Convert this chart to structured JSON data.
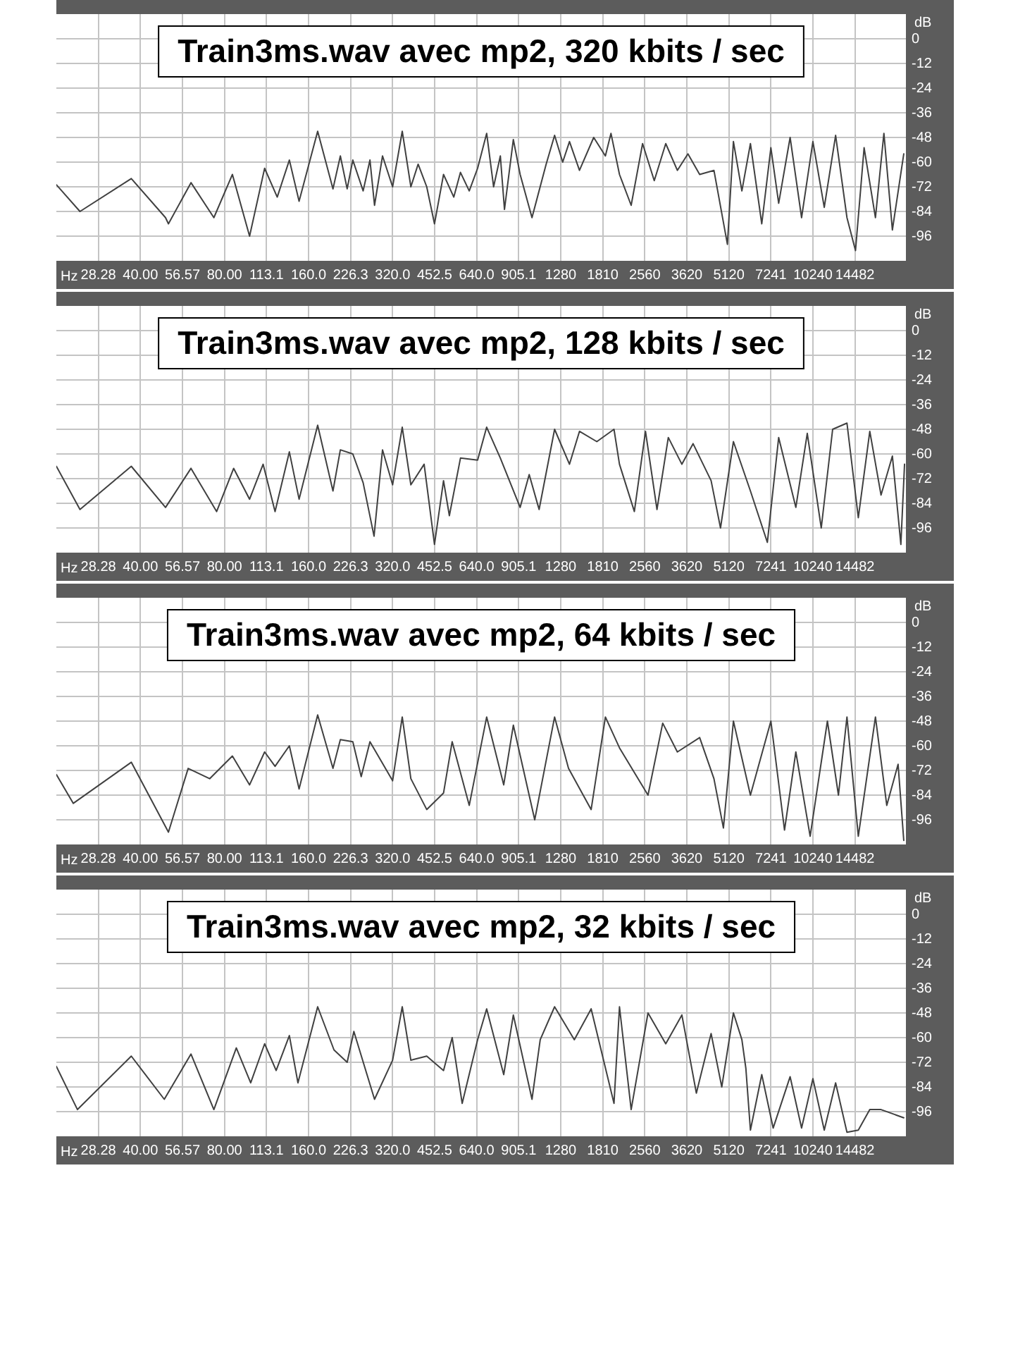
{
  "chart_data": [
    {
      "type": "line",
      "title": "Train3ms.wav avec mp2, 320 kbits / sec",
      "xlabel": "Hz",
      "ylabel": "dB",
      "color": "#404040",
      "log": "x",
      "grid": true,
      "xlim": [
        20,
        22050
      ],
      "ylim": [
        -108,
        12
      ],
      "xticks": [
        28.28,
        {
          "value": 40,
          "label": "40.00"
        },
        56.57,
        {
          "value": 80,
          "label": "80.00"
        },
        113.1,
        {
          "value": 160,
          "label": "160.0"
        },
        226.3,
        {
          "value": 320,
          "label": "320.0"
        },
        452.5,
        {
          "value": 640,
          "label": "640.0"
        },
        905.1,
        1280,
        1810,
        2560,
        3620,
        5120,
        7241,
        10240,
        14482
      ],
      "yticks": [
        0,
        -12,
        -24,
        -36,
        -48,
        -60,
        -72,
        -84,
        -96
      ],
      "x": [
        20,
        24.3,
        37.1,
        49.2,
        50.4,
        60.7,
        73.3,
        85.4,
        98.4,
        111.4,
        123.6,
        136.6,
        148,
        172.5,
        195.7,
        208,
        220,
        230.5,
        251,
        265.5,
        275.7,
        294.5,
        320,
        346.5,
        372,
        395,
        424,
        452,
        487,
        530,
        560,
        602,
        645,
        695,
        736,
        778,
        805,
        866,
        916,
        1010,
        1135,
        1217,
        1301,
        1376,
        1494,
        1680,
        1850,
        1937,
        2078,
        2288,
        2514,
        2768,
        3043,
        3349,
        3654,
        4025,
        4528,
        5060,
        5317,
        5701,
        6117,
        6717,
        7241,
        7722,
        8486,
        9327,
        10240,
        11245,
        12350,
        13560,
        14550,
        15620,
        17150,
        18390,
        19720,
        21660
      ],
      "values": [
        -71,
        -84,
        -68,
        -87,
        -90,
        -70,
        -87,
        -66,
        -96,
        -63,
        -77,
        -59,
        -79,
        -45,
        -73,
        -57,
        -73,
        -59,
        -74,
        -59,
        -81,
        -57,
        -72,
        -45,
        -72,
        -61,
        -72,
        -90,
        -66,
        -77,
        -65,
        -74,
        -63,
        -46,
        -72,
        -57,
        -83,
        -49,
        -66,
        -87,
        -61,
        -47,
        -60,
        -50,
        -64,
        -48,
        -57,
        -46,
        -66,
        -81,
        -51,
        -69,
        -51,
        -64,
        -56,
        -66,
        -64,
        -100,
        -50,
        -74,
        -51,
        -90,
        -53,
        -80,
        -48,
        -87,
        -50,
        -82,
        -47,
        -87,
        -103,
        -53,
        -87,
        -46,
        -93,
        -56
      ]
    },
    {
      "type": "line",
      "title": "Train3ms.wav avec mp2, 128 kbits / sec",
      "xlabel": "Hz",
      "ylabel": "dB",
      "color": "#404040",
      "log": "x",
      "grid": true,
      "xlim": [
        20,
        22050
      ],
      "ylim": [
        -108,
        12
      ],
      "xticks": [
        28.28,
        {
          "value": 40,
          "label": "40.00"
        },
        56.57,
        {
          "value": 80,
          "label": "80.00"
        },
        113.1,
        {
          "value": 160,
          "label": "160.0"
        },
        226.3,
        {
          "value": 320,
          "label": "320.0"
        },
        452.5,
        {
          "value": 640,
          "label": "640.0"
        },
        905.1,
        1280,
        1810,
        2560,
        3620,
        5120,
        7241,
        10240,
        14482
      ],
      "yticks": [
        0,
        -12,
        -24,
        -36,
        -48,
        -60,
        -72,
        -84,
        -96
      ],
      "x": [
        20,
        24.3,
        37.1,
        49.2,
        60.7,
        75,
        86.3,
        98.4,
        110,
        121.4,
        136.6,
        148,
        172.5,
        195.7,
        208,
        230.5,
        251,
        274.6,
        294.5,
        320,
        346.5,
        372,
        415,
        452,
        487,
        511,
        560,
        645,
        695,
        778,
        916,
        987,
        1071,
        1217,
        1376,
        1494,
        1724,
        1986,
        2078,
        2349,
        2575,
        2831,
        3108,
        3476,
        3812,
        4423,
        4780,
        5317,
        6117,
        7034,
        7722,
        8896,
        9775,
        10970,
        12050,
        13560,
        14890,
        16370,
        17960,
        19720,
        21150,
        21800
      ],
      "values": [
        -66,
        -87,
        -66,
        -86,
        -67,
        -88,
        -67,
        -82,
        -65,
        -88,
        -59,
        -82,
        -46,
        -78,
        -58,
        -60,
        -74,
        -100,
        -58,
        -75,
        -47,
        -75,
        -65,
        -104,
        -73,
        -90,
        -62,
        -63,
        -47,
        -62,
        -86,
        -70,
        -87,
        -48,
        -65,
        -49,
        -54,
        -48,
        -65,
        -88,
        -49,
        -87,
        -52,
        -65,
        -55,
        -73,
        -96,
        -54,
        -78,
        -103,
        -52,
        -86,
        -50,
        -96,
        -48,
        -45,
        -91,
        -49,
        -80,
        -61,
        -104,
        -65
      ]
    },
    {
      "type": "line",
      "title": "Train3ms.wav avec mp2, 64 kbits / sec",
      "xlabel": "Hz",
      "ylabel": "dB",
      "color": "#404040",
      "log": "x",
      "grid": true,
      "xlim": [
        20,
        22050
      ],
      "ylim": [
        -108,
        12
      ],
      "xticks": [
        28.28,
        {
          "value": 40,
          "label": "40.00"
        },
        56.57,
        {
          "value": 80,
          "label": "80.00"
        },
        113.1,
        {
          "value": 160,
          "label": "160.0"
        },
        226.3,
        {
          "value": 320,
          "label": "320.0"
        },
        452.5,
        {
          "value": 640,
          "label": "640.0"
        },
        905.1,
        1280,
        1810,
        2560,
        3620,
        5120,
        7241,
        10240,
        14482
      ],
      "yticks": [
        0,
        -12,
        -24,
        -36,
        -48,
        -60,
        -72,
        -84,
        -96
      ],
      "x": [
        20,
        23,
        37.1,
        50.4,
        59.3,
        70.8,
        85.4,
        98.4,
        111.4,
        121.4,
        136.6,
        148,
        172.5,
        195.7,
        208,
        230.5,
        247,
        265.5,
        320,
        346.5,
        372,
        424,
        487,
        523,
        602,
        695,
        800,
        866,
        1033,
        1217,
        1365,
        1645,
        1850,
        2078,
        2629,
        2968,
        3349,
        4025,
        4528,
        4896,
        5317,
        6117,
        7241,
        8103,
        8896,
        10010,
        11540,
        12640,
        13560,
        14890,
        17150,
        18830,
        20670,
        21660
      ],
      "values": [
        -74,
        -88,
        -68,
        -102,
        -71,
        -76,
        -65,
        -79,
        -63,
        -70,
        -60,
        -81,
        -45,
        -71,
        -57,
        -58,
        -75,
        -58,
        -77,
        -46,
        -76,
        -91,
        -83,
        -58,
        -89,
        -46,
        -79,
        -50,
        -96,
        -46,
        -71,
        -91,
        -46,
        -61,
        -84,
        -49,
        -63,
        -56,
        -76,
        -100,
        -48,
        -84,
        -48,
        -101,
        -63,
        -104,
        -48,
        -84,
        -46,
        -104,
        -46,
        -89,
        -69,
        -106
      ]
    },
    {
      "type": "line",
      "title": "Train3ms.wav avec mp2, 32 kbits / sec",
      "xlabel": "Hz",
      "ylabel": "dB",
      "color": "#404040",
      "log": "x",
      "grid": true,
      "xlim": [
        20,
        22050
      ],
      "ylim": [
        -108,
        12
      ],
      "xticks": [
        28.28,
        {
          "value": 40,
          "label": "40.00"
        },
        56.57,
        {
          "value": 80,
          "label": "80.00"
        },
        113.1,
        {
          "value": 160,
          "label": "160.0"
        },
        226.3,
        {
          "value": 320,
          "label": "320.0"
        },
        452.5,
        {
          "value": 640,
          "label": "640.0"
        },
        905.1,
        1280,
        1810,
        2560,
        3620,
        5120,
        7241,
        10240,
        14482
      ],
      "yticks": [
        0,
        -12,
        -24,
        -36,
        -48,
        -60,
        -72,
        -84,
        -96
      ],
      "x": [
        20,
        23.8,
        37.1,
        48.7,
        60.7,
        73.3,
        88.2,
        99.3,
        111.4,
        122.5,
        136.6,
        146.6,
        172.5,
        197.4,
        220,
        232.5,
        275.7,
        320,
        346.5,
        372,
        424,
        487,
        523,
        568,
        645,
        695,
        800,
        866,
        1010,
        1081,
        1217,
        1432,
        1645,
        1986,
        2078,
        2288,
        2629,
        3043,
        3476,
        3917,
        4423,
        4830,
        5317,
        5701,
        5892,
        6117,
        6717,
        7378,
        8486,
        9327,
        10240,
        11245,
        12350,
        13560,
        14890,
        16370,
        17960,
        19720,
        21660
      ],
      "values": [
        -74,
        -95,
        -69,
        -90,
        -68,
        -95,
        -65,
        -82,
        -63,
        -76,
        -59,
        -82,
        -45,
        -66,
        -72,
        -57,
        -90,
        -71,
        -45,
        -71,
        -69,
        -76,
        -60,
        -92,
        -61,
        -46,
        -78,
        -49,
        -90,
        -61,
        -45,
        -61,
        -46,
        -92,
        -45,
        -95,
        -48,
        -63,
        -49,
        -87,
        -58,
        -84,
        -48,
        -61,
        -75,
        -105,
        -78,
        -104,
        -79,
        -104,
        -80,
        -105,
        -82,
        -106,
        -105,
        -95,
        -95,
        -97,
        -99
      ]
    }
  ]
}
